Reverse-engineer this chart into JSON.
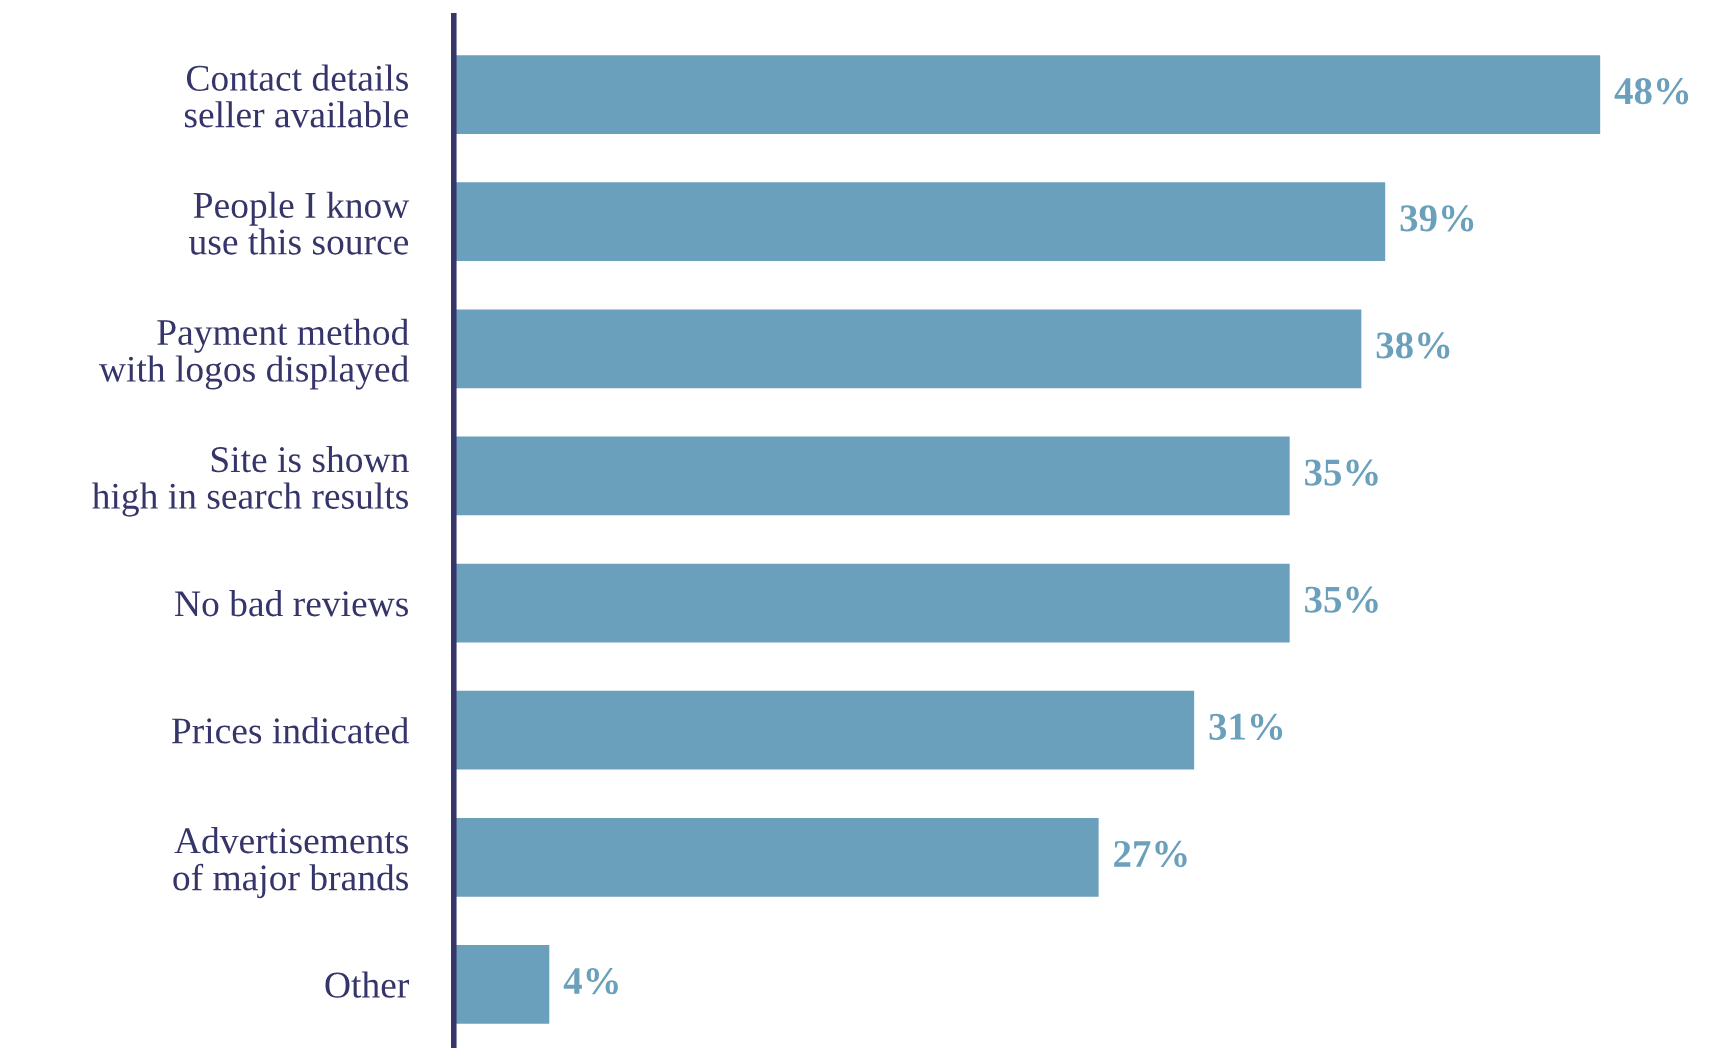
{
  "chart_data": {
    "type": "bar",
    "orientation": "horizontal",
    "categories": [
      "Contact details\nseller available",
      "People I know\nuse this source",
      "Payment method\nwith logos displayed",
      "Site is shown\nhigh in search results",
      "No bad reviews",
      "Prices indicated",
      "Advertisements\nof major brands",
      "Other"
    ],
    "values": [
      48,
      39,
      38,
      35,
      35,
      31,
      27,
      4
    ],
    "value_labels": [
      "48%",
      "39%",
      "38%",
      "35%",
      "35%",
      "31%",
      "27%",
      "4%"
    ],
    "color": "#6aa0bb"
  }
}
